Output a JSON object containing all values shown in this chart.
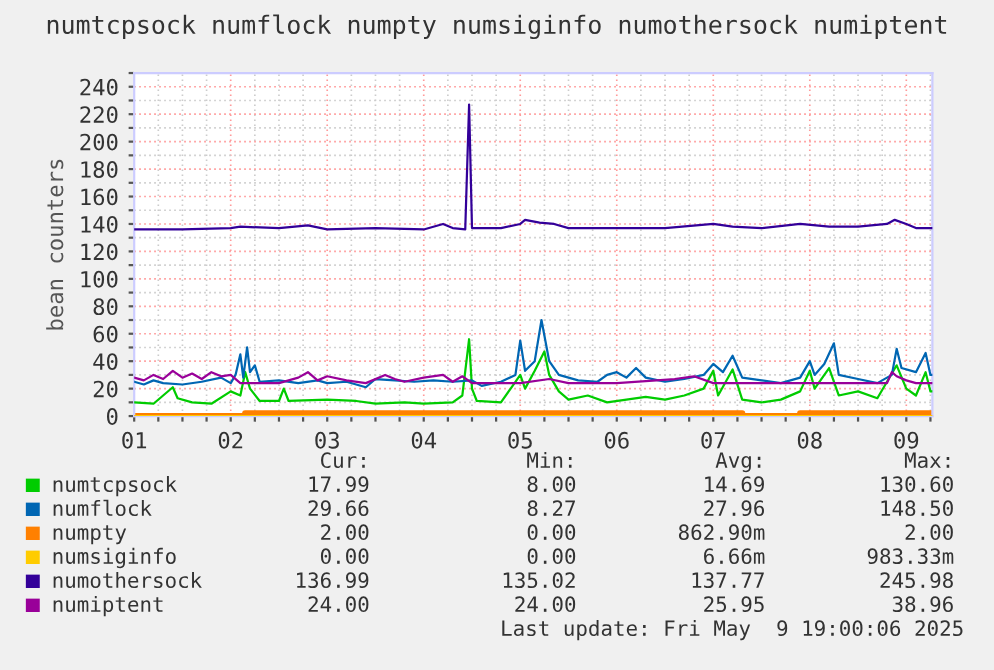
{
  "chart_data": {
    "type": "line",
    "title": "numtcpsock numflock numpty numsiginfo numothersock numiptent",
    "ylabel": "bean counters",
    "xlim": [
      1,
      9.27
    ],
    "ylim": [
      0,
      250
    ],
    "xticks": [
      {
        "value": 1,
        "label": "01"
      },
      {
        "value": 1.25,
        "label": null
      },
      {
        "value": 1.5,
        "label": null
      },
      {
        "value": 1.75,
        "label": null
      },
      {
        "value": 2,
        "label": "02"
      },
      {
        "value": 2.25,
        "label": null
      },
      {
        "value": 2.5,
        "label": null
      },
      {
        "value": 2.75,
        "label": null
      },
      {
        "value": 3,
        "label": "03"
      },
      {
        "value": 3.25,
        "label": null
      },
      {
        "value": 3.5,
        "label": null
      },
      {
        "value": 3.75,
        "label": null
      },
      {
        "value": 4,
        "label": "04"
      },
      {
        "value": 4.25,
        "label": null
      },
      {
        "value": 4.5,
        "label": null
      },
      {
        "value": 4.75,
        "label": null
      },
      {
        "value": 5,
        "label": "05"
      },
      {
        "value": 5.25,
        "label": null
      },
      {
        "value": 5.5,
        "label": null
      },
      {
        "value": 5.75,
        "label": null
      },
      {
        "value": 6,
        "label": "06"
      },
      {
        "value": 6.25,
        "label": null
      },
      {
        "value": 6.5,
        "label": null
      },
      {
        "value": 6.75,
        "label": null
      },
      {
        "value": 7,
        "label": "07"
      },
      {
        "value": 7.25,
        "label": null
      },
      {
        "value": 7.5,
        "label": null
      },
      {
        "value": 7.75,
        "label": null
      },
      {
        "value": 8,
        "label": "08"
      },
      {
        "value": 8.25,
        "label": null
      },
      {
        "value": 8.5,
        "label": null
      },
      {
        "value": 8.75,
        "label": null
      },
      {
        "value": 9,
        "label": "09"
      },
      {
        "value": 9.25,
        "label": null
      }
    ],
    "yticks": [
      0,
      {
        "value": 10,
        "label": null
      },
      20,
      {
        "value": 30,
        "label": null
      },
      40,
      {
        "value": 50,
        "label": null
      },
      60,
      {
        "value": 70,
        "label": null
      },
      80,
      {
        "value": 90,
        "label": null
      },
      100,
      {
        "value": 110,
        "label": null
      },
      120,
      {
        "value": 130,
        "label": null
      },
      140,
      {
        "value": 150,
        "label": null
      },
      160,
      {
        "value": 170,
        "label": null
      },
      180,
      {
        "value": 190,
        "label": null
      },
      200,
      {
        "value": 210,
        "label": null
      },
      220,
      {
        "value": 230,
        "label": null
      },
      240,
      {
        "value": 250,
        "label": null
      }
    ],
    "grid": true,
    "legend": "bottom",
    "series": [
      {
        "name": "numtcpsock",
        "color": "#00cc00",
        "x": [
          1.0,
          1.2,
          1.4,
          1.45,
          1.6,
          1.8,
          2.0,
          2.1,
          2.15,
          2.2,
          2.3,
          2.5,
          2.55,
          2.6,
          3.0,
          3.3,
          3.5,
          3.8,
          4.0,
          4.3,
          4.4,
          4.47,
          4.5,
          4.55,
          4.8,
          4.95,
          5.0,
          5.05,
          5.15,
          5.25,
          5.3,
          5.4,
          5.5,
          5.7,
          5.9,
          6.1,
          6.3,
          6.5,
          6.7,
          6.9,
          7.0,
          7.05,
          7.2,
          7.3,
          7.5,
          7.7,
          7.9,
          8.0,
          8.05,
          8.2,
          8.3,
          8.5,
          8.7,
          8.9,
          9.0,
          9.1,
          9.2,
          9.25,
          9.27
        ],
        "values": [
          10,
          9,
          21,
          13,
          10,
          9,
          18,
          15,
          32,
          20,
          11,
          11,
          20,
          11,
          12,
          11,
          9,
          10,
          9,
          10,
          15,
          56,
          20,
          11,
          10,
          25,
          30,
          20,
          33,
          47,
          30,
          18,
          12,
          15,
          10,
          12,
          14,
          12,
          15,
          20,
          33,
          15,
          34,
          12,
          10,
          12,
          18,
          33,
          20,
          35,
          15,
          18,
          13,
          37,
          20,
          15,
          32,
          18,
          18
        ]
      },
      {
        "name": "numflock",
        "color": "#0066b3",
        "x": [
          1.0,
          1.1,
          1.2,
          1.3,
          1.5,
          1.7,
          1.9,
          2.0,
          2.05,
          2.1,
          2.13,
          2.17,
          2.2,
          2.25,
          2.3,
          2.5,
          2.7,
          2.9,
          3.0,
          3.2,
          3.4,
          3.5,
          3.7,
          3.9,
          4.1,
          4.3,
          4.5,
          4.6,
          4.8,
          4.95,
          5.0,
          5.05,
          5.15,
          5.22,
          5.3,
          5.4,
          5.6,
          5.8,
          5.9,
          6.0,
          6.1,
          6.2,
          6.3,
          6.5,
          6.7,
          6.9,
          7.0,
          7.1,
          7.2,
          7.3,
          7.5,
          7.7,
          7.9,
          8.0,
          8.05,
          8.15,
          8.25,
          8.3,
          8.5,
          8.7,
          8.85,
          8.9,
          8.95,
          9.1,
          9.2,
          9.25,
          9.27
        ],
        "values": [
          25,
          23,
          26,
          24,
          23,
          25,
          28,
          24,
          30,
          45,
          28,
          50,
          32,
          37,
          25,
          26,
          24,
          26,
          24,
          25,
          21,
          27,
          26,
          25,
          26,
          25,
          26,
          22,
          25,
          30,
          55,
          33,
          40,
          70,
          40,
          30,
          26,
          25,
          30,
          32,
          28,
          35,
          28,
          25,
          27,
          30,
          38,
          32,
          44,
          28,
          26,
          24,
          28,
          40,
          30,
          38,
          53,
          30,
          27,
          24,
          30,
          49,
          35,
          32,
          46,
          30,
          30
        ]
      },
      {
        "name": "numpty",
        "color": "#ff8000",
        "type": "step",
        "x": [
          1,
          2.15,
          7.3,
          7.9,
          9.27
        ],
        "values": [
          0,
          2,
          0,
          2,
          2
        ]
      },
      {
        "name": "numsiginfo",
        "color": "#ffcc00",
        "x": [
          1,
          9.27
        ],
        "values": [
          0,
          0
        ]
      },
      {
        "name": "numothersock",
        "color": "#330099",
        "x": [
          1.0,
          1.5,
          2.0,
          2.1,
          2.5,
          2.8,
          3.0,
          3.5,
          4.0,
          4.2,
          4.3,
          4.43,
          4.47,
          4.5,
          4.8,
          5.0,
          5.05,
          5.2,
          5.35,
          5.5,
          6.0,
          6.5,
          7.0,
          7.2,
          7.5,
          7.9,
          8.2,
          8.5,
          8.8,
          8.88,
          9.0,
          9.1,
          9.27
        ],
        "values": [
          136,
          136,
          137,
          138,
          137,
          139,
          136,
          137,
          136,
          140,
          137,
          136,
          227,
          137,
          137,
          140,
          143,
          141,
          140,
          137,
          137,
          137,
          140,
          138,
          137,
          140,
          138,
          138,
          140,
          143,
          140,
          137,
          137
        ]
      },
      {
        "name": "numiptent",
        "color": "#990099",
        "x": [
          1.0,
          1.1,
          1.2,
          1.3,
          1.4,
          1.5,
          1.6,
          1.7,
          1.8,
          1.9,
          2.0,
          2.1,
          2.5,
          2.7,
          2.8,
          2.9,
          3.0,
          3.2,
          3.4,
          3.6,
          3.7,
          3.8,
          4.0,
          4.2,
          4.3,
          4.4,
          4.5,
          5.0,
          5.3,
          5.5,
          6.0,
          6.6,
          6.8,
          7.0,
          8.8,
          8.85,
          8.9,
          9.0,
          9.1,
          9.27
        ],
        "values": [
          28,
          26,
          30,
          27,
          33,
          28,
          31,
          27,
          32,
          29,
          30,
          24,
          24,
          28,
          32,
          26,
          29,
          26,
          24,
          30,
          27,
          25,
          28,
          30,
          25,
          29,
          24,
          24,
          27,
          24,
          24,
          27,
          29,
          24,
          24,
          32,
          29,
          26,
          24,
          24
        ]
      }
    ],
    "annotations": [
      "Cur:",
      "Min:",
      "Avg:",
      "Max:",
      "17.99",
      "8.00",
      "14.69",
      "130.60",
      "29.66",
      "8.27",
      "27.96",
      "148.50",
      "2.00",
      "0.00",
      "862.90m",
      "2.00",
      "0.00",
      "0.00",
      "6.66m",
      "983.33m",
      "136.99",
      "135.02",
      "137.77",
      "245.98",
      "24.00",
      "24.00",
      "25.95",
      "38.96",
      "Last update: Fri May  9 19:00:06 2025"
    ]
  }
}
